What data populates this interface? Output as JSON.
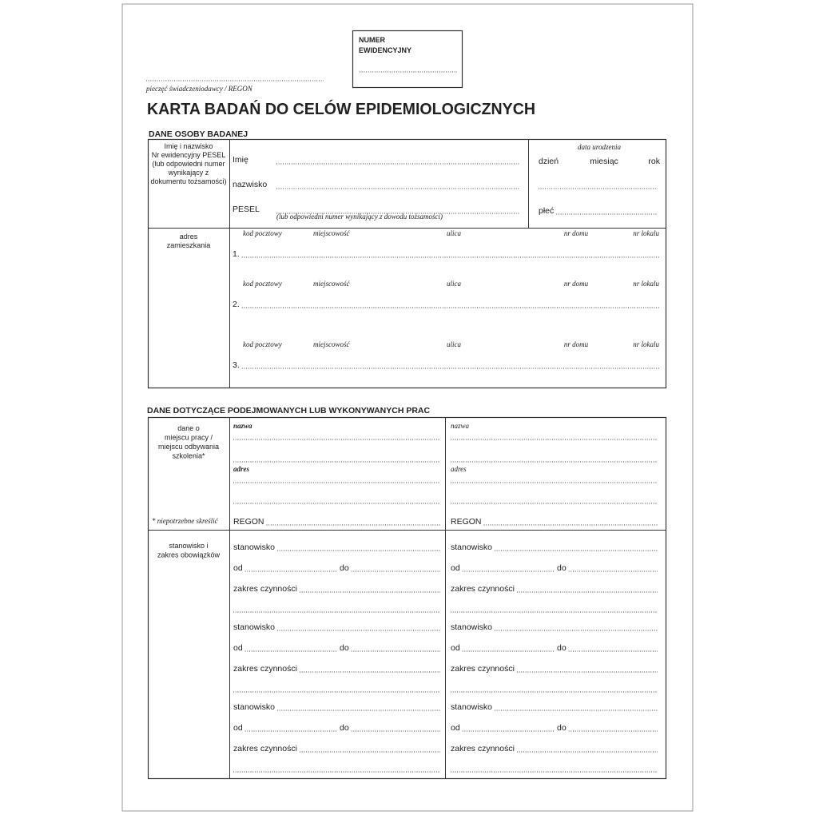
{
  "number_box": {
    "lines": [
      "NUMER",
      "EWIDENCYJNY"
    ]
  },
  "stamp_label": "pieczęć świadczeniodawcy / REGON",
  "title": "KARTA BADAŃ DO CELÓW EPIDEMIOLOGICZNYCH",
  "person": {
    "heading": "DANE OSOBY BADANEJ",
    "label_lines": [
      "Imię i nazwisko",
      "Nr ewidencyjny PESEL",
      "(lub odpowiedni numer",
      "wynikający z",
      "dokumentu tożsamości)"
    ],
    "fields": [
      "Imię",
      "nazwisko",
      "PESEL"
    ],
    "pesel_note": "(lub odpowiedni numer wynikający z dowodu tożsamości)",
    "birth_date_label": "data urodzenia",
    "birth_parts": [
      "dzień",
      "miesiąc",
      "rok"
    ],
    "sex_label": "płeć"
  },
  "address": {
    "label_lines": [
      "adres",
      "zamieszkania"
    ],
    "entries": [
      {
        "number": "1.",
        "headers": [
          "kod pocztowy",
          "miejscowość",
          "ulica",
          "nr domu",
          "nr lokalu"
        ]
      },
      {
        "number": "2.",
        "headers": [
          "kod pocztowy",
          "miejscowość",
          "ulica",
          "nr domu",
          "nr lokalu"
        ]
      },
      {
        "number": "3.",
        "headers": [
          "kod pocztowy",
          "miejscowość",
          "ulica",
          "nr domu",
          "nr lokalu"
        ]
      }
    ]
  },
  "work": {
    "heading": "DANE DOTYCZĄCE PODEJMOWANYCH LUB WYKONYWANYCH PRAC",
    "workplace_label_lines": [
      "dane o",
      "miejscu pracy /",
      "miejscu odbywania",
      "szkolenia*"
    ],
    "footnote": "* niepotrzebne skreślić",
    "duties_label_lines": [
      "stanowisko i",
      "zakres obowiązków"
    ],
    "columns": [
      {
        "name_label": "nazwa",
        "address_label": "adres",
        "regon_label": "REGON",
        "positions": [
          {
            "position": "stanowisko",
            "from": "od",
            "to": "do",
            "scope": "zakres czynności"
          },
          {
            "position": "stanowisko",
            "from": "od",
            "to": "do",
            "scope": "zakres czynności"
          },
          {
            "position": "stanowisko",
            "from": "od",
            "to": "do",
            "scope": "zakres czynności"
          }
        ]
      },
      {
        "name_label": "nazwa",
        "address_label": "adres",
        "regon_label": "REGON",
        "positions": [
          {
            "position": "stanowisko",
            "from": "od",
            "to": "do",
            "scope": "zakres czynności"
          },
          {
            "position": "stanowisko",
            "from": "od",
            "to": "do",
            "scope": "zakres czynności"
          },
          {
            "position": "stanowisko",
            "from": "od",
            "to": "do",
            "scope": "zakres czynności"
          }
        ]
      }
    ]
  }
}
